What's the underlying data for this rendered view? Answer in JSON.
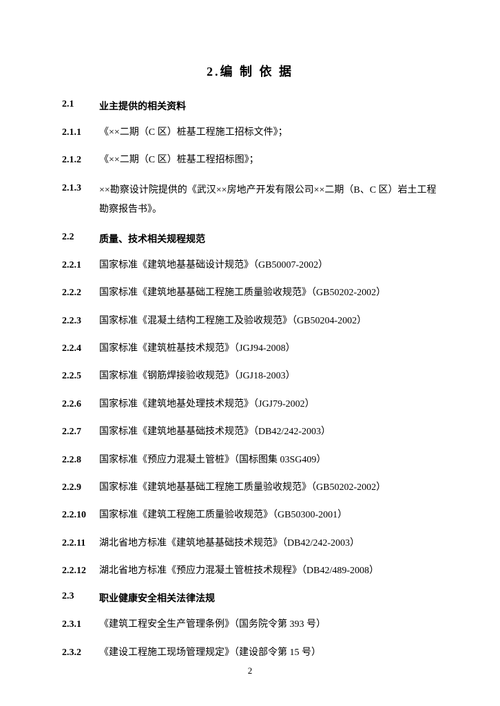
{
  "title": "2.编 制 依 据",
  "sections": [
    {
      "num": "2.1",
      "heading": "业主提供的相关资料",
      "items": [
        {
          "num": "2.1.1",
          "text": "《××二期（C 区）桩基工程施工招标文件》；"
        },
        {
          "num": "2.1.2",
          "text": "《××二期（C 区）桩基工程招标图》；"
        },
        {
          "num": "2.1.3",
          "text": "××勘察设计院提供的《武汉××房地产开发有限公司××二期（B、C 区）岩土工程勘察报告书》。",
          "multiline": true
        }
      ]
    },
    {
      "num": "2.2",
      "heading": "质量、技术相关规程规范",
      "items": [
        {
          "num": "2.2.1",
          "text": "国家标准《建筑地基基础设计规范》（GB50007-2002）"
        },
        {
          "num": "2.2.2",
          "text": "国家标准《建筑地基基础工程施工质量验收规范》（GB50202-2002）"
        },
        {
          "num": "2.2.3",
          "text": "国家标准《混凝土结构工程施工及验收规范》（GB50204-2002）"
        },
        {
          "num": "2.2.4",
          "text": "国家标准《建筑桩基技术规范》（JGJ94-2008）"
        },
        {
          "num": "2.2.5",
          "text": "国家标准《钢筋焊接验收规范》（JGJ18-2003）"
        },
        {
          "num": "2.2.6",
          "text": "国家标准《建筑地基处理技术规范》（JGJ79-2002）"
        },
        {
          "num": "2.2.7",
          "text": "国家标准《建筑地基基础技术规范》（DB42/242-2003）"
        },
        {
          "num": "2.2.8",
          "text": "国家标准《预应力混凝土管桩》（国标图集 03SG409）"
        },
        {
          "num": "2.2.9",
          "text": "国家标准《建筑地基基础工程施工质量验收规范》（GB50202-2002）"
        },
        {
          "num": "2.2.10",
          "text": "国家标准《建筑工程施工质量验收规范》（GB50300-2001）"
        },
        {
          "num": "2.2.11",
          "text": "湖北省地方标准《建筑地基基础技术规范》（DB42/242-2003）"
        },
        {
          "num": "2.2.12",
          "text": "湖北省地方标准《预应力混凝土管桩技术规程》（DB42/489-2008）"
        }
      ]
    },
    {
      "num": "2.3",
      "heading": "职业健康安全相关法律法规",
      "items": [
        {
          "num": "2.3.1",
          "text": "《建筑工程安全生产管理条例》（国务院令第 393 号）"
        },
        {
          "num": "2.3.2",
          "text": "《建设工程施工现场管理规定》（建设部令第 15 号）"
        }
      ]
    }
  ],
  "pageNumber": "2"
}
